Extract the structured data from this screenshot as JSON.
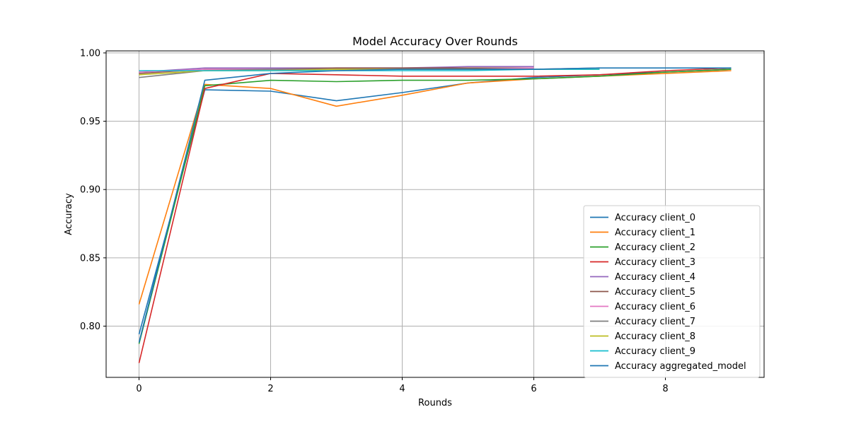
{
  "chart_data": {
    "type": "line",
    "title": "Model Accuracy Over Rounds",
    "xlabel": "Rounds",
    "ylabel": "Accuracy",
    "xlim": [
      -0.5,
      9.5
    ],
    "ylim": [
      0.7625,
      1.0015
    ],
    "xticks": [
      0,
      2,
      4,
      6,
      8
    ],
    "yticks": [
      0.8,
      0.85,
      0.9,
      0.95,
      1.0
    ],
    "ytick_labels": [
      "0.80",
      "0.85",
      "0.90",
      "0.95",
      "1.00"
    ],
    "grid": true,
    "legend_position": "lower right",
    "series": [
      {
        "name": "Accuracy client_0",
        "color": "#1f77b4",
        "x": [
          0,
          1,
          2,
          3,
          4,
          5,
          6,
          7,
          8,
          9
        ],
        "y": [
          0.794,
          0.973,
          0.972,
          0.965,
          0.971,
          0.978,
          0.982,
          0.984,
          0.986,
          0.988
        ]
      },
      {
        "name": "Accuracy client_1",
        "color": "#ff7f0e",
        "x": [
          0,
          1,
          2,
          3,
          4,
          5,
          6,
          7,
          8,
          9
        ],
        "y": [
          0.816,
          0.977,
          0.974,
          0.961,
          0.969,
          0.978,
          0.981,
          0.983,
          0.985,
          0.987
        ]
      },
      {
        "name": "Accuracy client_2",
        "color": "#2ca02c",
        "x": [
          0,
          1,
          2,
          3,
          4,
          5,
          6,
          7,
          8,
          9
        ],
        "y": [
          0.787,
          0.976,
          0.98,
          0.979,
          0.98,
          0.98,
          0.981,
          0.983,
          0.986,
          0.988
        ]
      },
      {
        "name": "Accuracy client_3",
        "color": "#d62728",
        "x": [
          0,
          1,
          2,
          3,
          4,
          5,
          6,
          7,
          8,
          9
        ],
        "y": [
          0.773,
          0.974,
          0.985,
          0.984,
          0.983,
          0.983,
          0.983,
          0.984,
          0.987,
          0.989
        ]
      },
      {
        "name": "Accuracy client_4",
        "color": "#9467bd",
        "x": [
          0,
          1,
          2,
          3,
          4,
          5,
          6
        ],
        "y": [
          0.986,
          0.989,
          0.989,
          0.989,
          0.989,
          0.99,
          0.99
        ]
      },
      {
        "name": "Accuracy client_5",
        "color": "#8c564b",
        "x": [
          0,
          1,
          2,
          3,
          4,
          5,
          6
        ],
        "y": [
          0.985,
          0.988,
          0.988,
          0.989,
          0.989,
          0.989,
          0.989
        ]
      },
      {
        "name": "Accuracy client_6",
        "color": "#e377c2",
        "x": [
          0,
          1,
          2,
          3,
          4,
          5,
          6
        ],
        "y": [
          0.986,
          0.988,
          0.988,
          0.988,
          0.988,
          0.988,
          0.989
        ]
      },
      {
        "name": "Accuracy client_7",
        "color": "#7f7f7f",
        "x": [
          0,
          1,
          2,
          3,
          4,
          5,
          6,
          7
        ],
        "y": [
          0.982,
          0.987,
          0.988,
          0.988,
          0.988,
          0.988,
          0.988,
          0.989
        ]
      },
      {
        "name": "Accuracy client_8",
        "color": "#bcbd22",
        "x": [
          0,
          1,
          2,
          3,
          4,
          5,
          6,
          7
        ],
        "y": [
          0.984,
          0.987,
          0.987,
          0.988,
          0.988,
          0.988,
          0.988,
          0.988
        ]
      },
      {
        "name": "Accuracy client_9",
        "color": "#17becf",
        "x": [
          0,
          1,
          2,
          3,
          4,
          5,
          6,
          7
        ],
        "y": [
          0.987,
          0.987,
          0.987,
          0.987,
          0.987,
          0.987,
          0.988,
          0.988
        ]
      },
      {
        "name": "Accuracy aggregated_model",
        "color": "#1f77b4",
        "x": [
          0,
          1,
          2,
          3,
          4,
          5,
          6,
          7,
          8,
          9
        ],
        "y": [
          0.788,
          0.98,
          0.985,
          0.987,
          0.988,
          0.988,
          0.988,
          0.989,
          0.989,
          0.989
        ]
      }
    ]
  }
}
